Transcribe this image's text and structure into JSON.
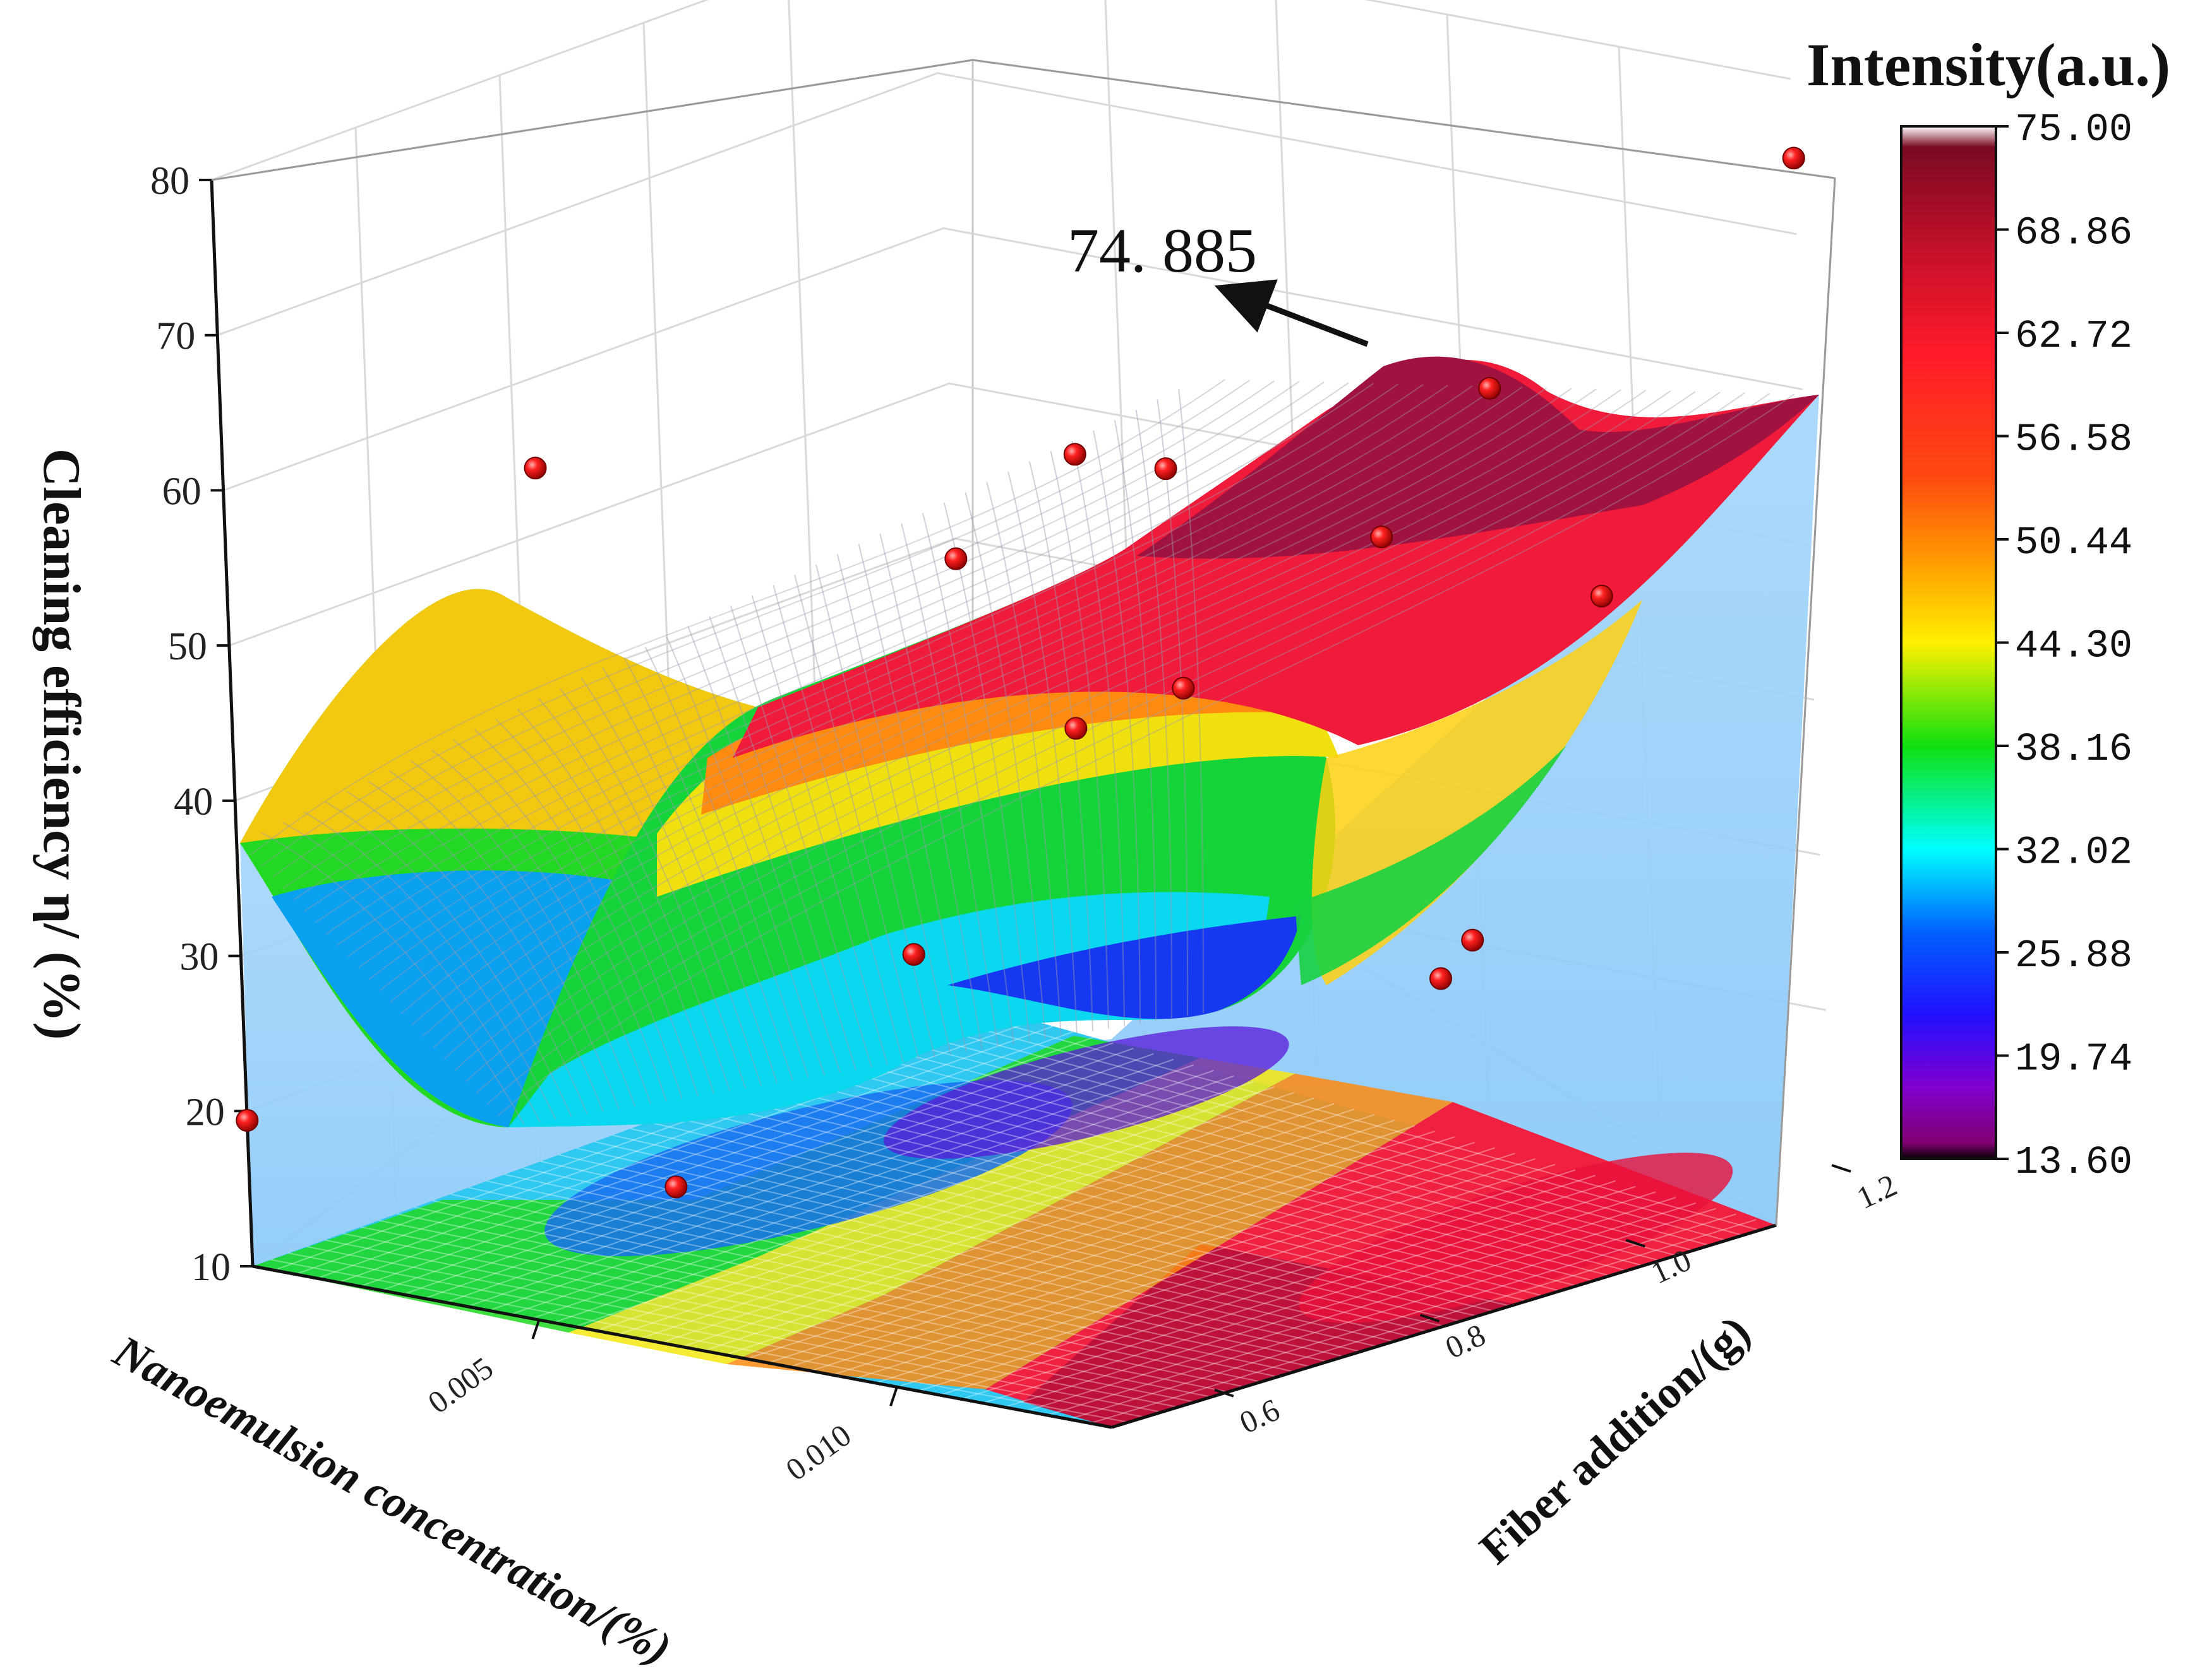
{
  "chart_data": {
    "type": "surface3d",
    "z_axis": {
      "label": "Cleaning efficiency  η/ (%)",
      "range": [
        10,
        80
      ],
      "ticks": [
        "10",
        "20",
        "30",
        "40",
        "50",
        "60",
        "70",
        "80"
      ]
    },
    "x_axis": {
      "label": "Nanoemulsion concentration/(%)",
      "range": [
        0.001,
        0.013
      ],
      "ticks": [
        "0.005",
        "0.010"
      ]
    },
    "y_axis": {
      "label": "Fiber addition/(g)",
      "range": [
        0.5,
        1.2
      ],
      "ticks": [
        "0.6",
        "0.8",
        "1.0",
        "1.2"
      ]
    },
    "colorbar": {
      "title": "Intensity(a.u.)",
      "ticks": [
        "75.00",
        "68.86",
        "62.72",
        "56.58",
        "50.44",
        "44.30",
        "38.16",
        "32.02",
        "25.88",
        "19.74",
        "13.60"
      ],
      "colors": [
        "#ffffff",
        "#7a0a22",
        "#c4102a",
        "#f4182a",
        "#ff3410",
        "#ff8800",
        "#ffee00",
        "#10e010",
        "#00ffff",
        "#0060ff",
        "#1010ff",
        "#8000e0",
        "#800070",
        "#000000"
      ]
    },
    "annotation": {
      "text": "74. 885"
    },
    "points": [
      {
        "x": 0.001,
        "y": 1.2,
        "z": 38.7
      },
      {
        "x": 0.001,
        "y": 0.8,
        "z": 54.2
      },
      {
        "x": 0.001,
        "y": 0.5,
        "z": 19.4
      },
      {
        "x": 0.007,
        "y": 1.2,
        "z": 45.3
      },
      {
        "x": 0.007,
        "y": 0.9,
        "z": 40.2
      },
      {
        "x": 0.007,
        "y": 0.5,
        "z": 20.3
      },
      {
        "x": 0.013,
        "y": 1.2,
        "z": 74.9
      },
      {
        "x": 0.013,
        "y": 0.9,
        "z": 67.3
      },
      {
        "x": 0.013,
        "y": 0.5,
        "z": 72.7
      },
      {
        "x": 0.004,
        "y": 1.2,
        "z": 47.1
      },
      {
        "x": 0.009,
        "y": 0.6,
        "z": 34.6
      },
      {
        "x": 0.01,
        "y": 0.8,
        "z": 47.8
      },
      {
        "x": 0.012,
        "y": 0.9,
        "z": 28.4
      },
      {
        "x": 0.011,
        "y": 1.0,
        "z": 27.6
      },
      {
        "x": 0.013,
        "y": 1.0,
        "z": 51.5
      }
    ]
  }
}
